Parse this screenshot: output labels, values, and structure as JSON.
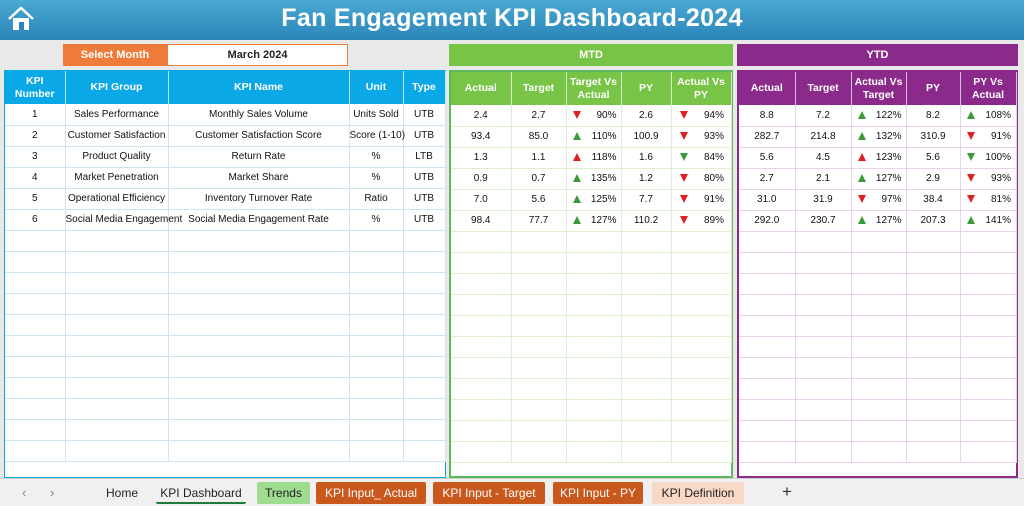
{
  "header": {
    "title": "Fan Engagement KPI Dashboard-2024"
  },
  "selector": {
    "label": "Select Month",
    "value": "March 2024"
  },
  "sections": {
    "mtd": "MTD",
    "ytd": "YTD"
  },
  "left_columns": [
    "KPI Number",
    "KPI Group",
    "KPI Name",
    "Unit",
    "Type"
  ],
  "mtd_columns": [
    "Actual",
    "Target",
    "Target Vs Actual",
    "PY",
    "Actual Vs PY"
  ],
  "ytd_columns": [
    "Actual",
    "Target",
    "Actual Vs Target",
    "PY",
    "PY Vs Actual"
  ],
  "rows": [
    {
      "num": "1",
      "group": "Sales Performance",
      "name": "Monthly Sales Volume",
      "unit": "Units Sold",
      "type": "UTB",
      "mtd": {
        "actual": "2.4",
        "target": "2.7",
        "tva": "90%",
        "tva_dir": "down",
        "py": "2.6",
        "avp": "94%",
        "avp_dir": "down"
      },
      "ytd": {
        "actual": "8.8",
        "target": "7.2",
        "avt": "122%",
        "avt_dir": "up",
        "py": "8.2",
        "pva": "108%",
        "pva_dir": "up"
      }
    },
    {
      "num": "2",
      "group": "Customer Satisfaction",
      "name": "Customer Satisfaction Score",
      "unit": "Score (1-10)",
      "type": "UTB",
      "mtd": {
        "actual": "93.4",
        "target": "85.0",
        "tva": "110%",
        "tva_dir": "up",
        "py": "100.9",
        "avp": "93%",
        "avp_dir": "down"
      },
      "ytd": {
        "actual": "282.7",
        "target": "214.8",
        "avt": "132%",
        "avt_dir": "up",
        "py": "310.9",
        "pva": "91%",
        "pva_dir": "down"
      }
    },
    {
      "num": "3",
      "group": "Product Quality",
      "name": "Return Rate",
      "unit": "%",
      "type": "LTB",
      "mtd": {
        "actual": "1.3",
        "target": "1.1",
        "tva": "118%",
        "tva_dir": "up-red",
        "py": "1.6",
        "avp": "84%",
        "avp_dir": "down-green"
      },
      "ytd": {
        "actual": "5.6",
        "target": "4.5",
        "avt": "123%",
        "avt_dir": "up-red",
        "py": "5.6",
        "pva": "100%",
        "pva_dir": "down-green"
      }
    },
    {
      "num": "4",
      "group": "Market Penetration",
      "name": "Market Share",
      "unit": "%",
      "type": "UTB",
      "mtd": {
        "actual": "0.9",
        "target": "0.7",
        "tva": "135%",
        "tva_dir": "up",
        "py": "1.2",
        "avp": "80%",
        "avp_dir": "down"
      },
      "ytd": {
        "actual": "2.7",
        "target": "2.1",
        "avt": "127%",
        "avt_dir": "up",
        "py": "2.9",
        "pva": "93%",
        "pva_dir": "down"
      }
    },
    {
      "num": "5",
      "group": "Operational Efficiency",
      "name": "Inventory Turnover Rate",
      "unit": "Ratio",
      "type": "UTB",
      "mtd": {
        "actual": "7.0",
        "target": "5.6",
        "tva": "125%",
        "tva_dir": "up",
        "py": "7.7",
        "avp": "91%",
        "avp_dir": "down"
      },
      "ytd": {
        "actual": "31.0",
        "target": "31.9",
        "avt": "97%",
        "avt_dir": "down",
        "py": "38.4",
        "pva": "81%",
        "pva_dir": "down"
      }
    },
    {
      "num": "6",
      "group": "Social Media Engagement",
      "name": "Social Media Engagement Rate",
      "unit": "%",
      "type": "UTB",
      "mtd": {
        "actual": "98.4",
        "target": "77.7",
        "tva": "127%",
        "tva_dir": "up",
        "py": "110.2",
        "avp": "89%",
        "avp_dir": "down"
      },
      "ytd": {
        "actual": "292.0",
        "target": "230.7",
        "avt": "127%",
        "avt_dir": "up",
        "py": "207.3",
        "pva": "141%",
        "pva_dir": "up"
      }
    }
  ],
  "sheet_tabs": [
    {
      "label": "Home",
      "bg": "#f0f0f0",
      "fg": "#222222",
      "active": false
    },
    {
      "label": "KPI Dashboard",
      "bg": "#f0f0f0",
      "fg": "#222222",
      "active": true
    },
    {
      "label": "Trends",
      "bg": "#9fdc8f",
      "fg": "#222222",
      "active": false
    },
    {
      "label": "KPI Input_ Actual",
      "bg": "#c8581c",
      "fg": "#ffffff",
      "active": false
    },
    {
      "label": "KPI Input - Target",
      "bg": "#c8581c",
      "fg": "#ffffff",
      "active": false
    },
    {
      "label": "KPI Input - PY",
      "bg": "#c8581c",
      "fg": "#ffffff",
      "active": false
    },
    {
      "label": "KPI Definition",
      "bg": "#f8d9c8",
      "fg": "#222222",
      "active": false
    }
  ],
  "colors": {
    "accent_left": "#0aa8e6",
    "accent_mtd": "#78c446",
    "accent_ytd": "#8b2a8b",
    "select": "#ef7b3a"
  },
  "icons": {
    "home": "home-icon",
    "prev": "chevron-left-icon",
    "next": "chevron-right-icon",
    "add": "plus-icon"
  }
}
